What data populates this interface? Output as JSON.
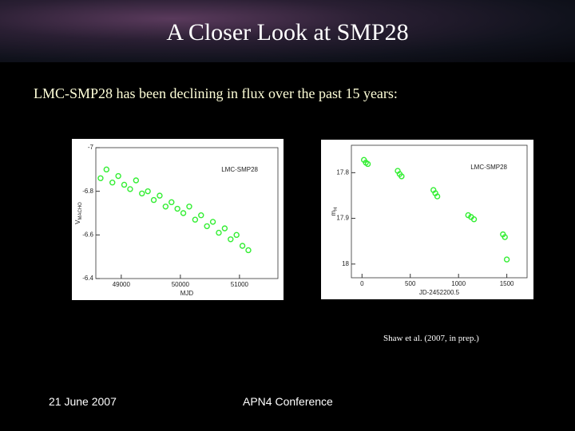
{
  "header": {
    "title": "A Closer Look at SMP28"
  },
  "body": {
    "text": "LMC-SMP28 has been declining in flux over the past 15 years:"
  },
  "chart_data": [
    {
      "type": "scatter",
      "legend": "LMC-SMP28",
      "x_label": "MJD",
      "y_label": "V",
      "y_label_sub": "MACHO",
      "color": "#33ee33",
      "x": [
        48650,
        48750,
        48850,
        48950,
        49050,
        49150,
        49250,
        49350,
        49450,
        49550,
        49650,
        49750,
        49850,
        49950,
        50050,
        50150,
        50250,
        50350,
        50450,
        50550,
        50650,
        50750,
        50850,
        50950,
        51050,
        51150
      ],
      "values": [
        -6.86,
        -6.9,
        -6.84,
        -6.87,
        -6.83,
        -6.81,
        -6.85,
        -6.79,
        -6.8,
        -6.76,
        -6.78,
        -6.73,
        -6.75,
        -6.72,
        -6.7,
        -6.73,
        -6.67,
        -6.69,
        -6.64,
        -6.66,
        -6.61,
        -6.63,
        -6.58,
        -6.6,
        -6.55,
        -6.53
      ],
      "xlim": [
        48570,
        51650
      ],
      "ylim": [
        -6.4,
        -7
      ],
      "xticks": [
        49000,
        50000,
        51000
      ],
      "yticks": [
        -7,
        -6.8,
        -6.6,
        -6.4
      ]
    },
    {
      "type": "scatter",
      "legend": "LMC-SMP28",
      "x_label": "JD-2452200.5",
      "y_label": "m",
      "y_label_sub": "H",
      "color": "#33ee33",
      "x": [
        20,
        40,
        60,
        370,
        390,
        410,
        740,
        760,
        780,
        1100,
        1130,
        1160,
        1460,
        1480,
        1500
      ],
      "values": [
        17.772,
        17.778,
        17.781,
        17.796,
        17.803,
        17.808,
        17.838,
        17.845,
        17.852,
        17.893,
        17.897,
        17.902,
        17.935,
        17.941,
        17.99
      ],
      "xlim": [
        -110,
        1710
      ],
      "ylim": [
        18.03,
        17.74
      ],
      "xticks": [
        0,
        500,
        1000,
        1500
      ],
      "yticks": [
        17.8,
        17.9,
        18
      ]
    }
  ],
  "caption": "Shaw et al. (2007, in prep.)",
  "footer": {
    "date": "21 June 2007",
    "event": "APN4 Conference"
  }
}
